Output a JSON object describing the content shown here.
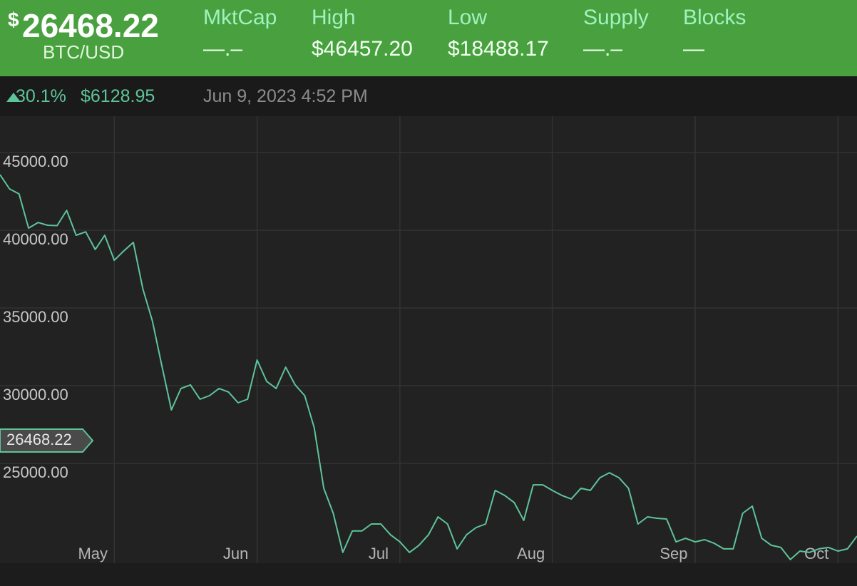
{
  "header": {
    "price_symbol": "$",
    "price": "26468.22",
    "pair": "BTC/USD",
    "stats": [
      {
        "label": "MktCap",
        "value": "—.–"
      },
      {
        "label": "High",
        "value": "$46457.20"
      },
      {
        "label": "Low",
        "value": "$18488.17"
      },
      {
        "label": "Supply",
        "value": "—.–"
      },
      {
        "label": "Blocks",
        "value": "—"
      }
    ]
  },
  "subheader": {
    "change_pct": "30.1%",
    "change_value": "$6128.95",
    "timestamp": "Jun 9, 2023 4:52 PM"
  },
  "chart_data": {
    "type": "line",
    "color": "#5ec49a",
    "grid": true,
    "categories": [
      null,
      null,
      null,
      null,
      null,
      null,
      null,
      null,
      null,
      null,
      null,
      null,
      "May",
      null,
      null,
      null,
      null,
      null,
      null,
      null,
      null,
      null,
      null,
      null,
      null,
      null,
      null,
      "Jun",
      null,
      null,
      null,
      null,
      null,
      null,
      null,
      null,
      null,
      null,
      null,
      null,
      null,
      null,
      "Jul",
      null,
      null,
      null,
      null,
      null,
      null,
      null,
      null,
      null,
      null,
      null,
      null,
      null,
      null,
      null,
      "Aug",
      null,
      null,
      null,
      null,
      null,
      null,
      null,
      null,
      null,
      null,
      null,
      null,
      null,
      null,
      "Sep",
      null,
      null,
      null,
      null,
      null,
      null,
      null,
      null,
      null,
      null,
      null,
      null,
      null,
      null,
      "Oct",
      null,
      null
    ],
    "values": [
      43578,
      42660,
      42340,
      40140,
      40500,
      40320,
      40300,
      41280,
      39680,
      39900,
      38760,
      39680,
      38070,
      38670,
      39220,
      36240,
      34170,
      31280,
      28440,
      29820,
      30050,
      29130,
      29360,
      29820,
      29590,
      28900,
      29130,
      31650,
      30280,
      29820,
      31190,
      30050,
      29360,
      27300,
      23400,
      21790,
      19270,
      20650,
      20650,
      21100,
      21100,
      20410,
      19950,
      19270,
      19730,
      20410,
      21560,
      21100,
      19500,
      20410,
      20870,
      21100,
      23260,
      22940,
      22480,
      21330,
      23620,
      23620,
      23260,
      22940,
      22710,
      23400,
      23260,
      24080,
      24400,
      24080,
      23400,
      21100,
      21560,
      21470,
      21420,
      19950,
      20180,
      19950,
      20090,
      19860,
      19500,
      19500,
      21790,
      22250,
      20180,
      19730,
      19590,
      18810,
      19360,
      19270,
      19500,
      19590,
      19360,
      19500,
      20320
    ],
    "ylim": [
      18578,
      47340
    ],
    "yticks": [
      {
        "value": 25000,
        "label": "25000.00"
      },
      {
        "value": 30000,
        "label": "30000.00"
      },
      {
        "value": 35000,
        "label": "35000.00"
      },
      {
        "value": 40000,
        "label": "40000.00"
      },
      {
        "value": 45000,
        "label": "45000.00"
      }
    ],
    "current_price": 26468.22
  }
}
